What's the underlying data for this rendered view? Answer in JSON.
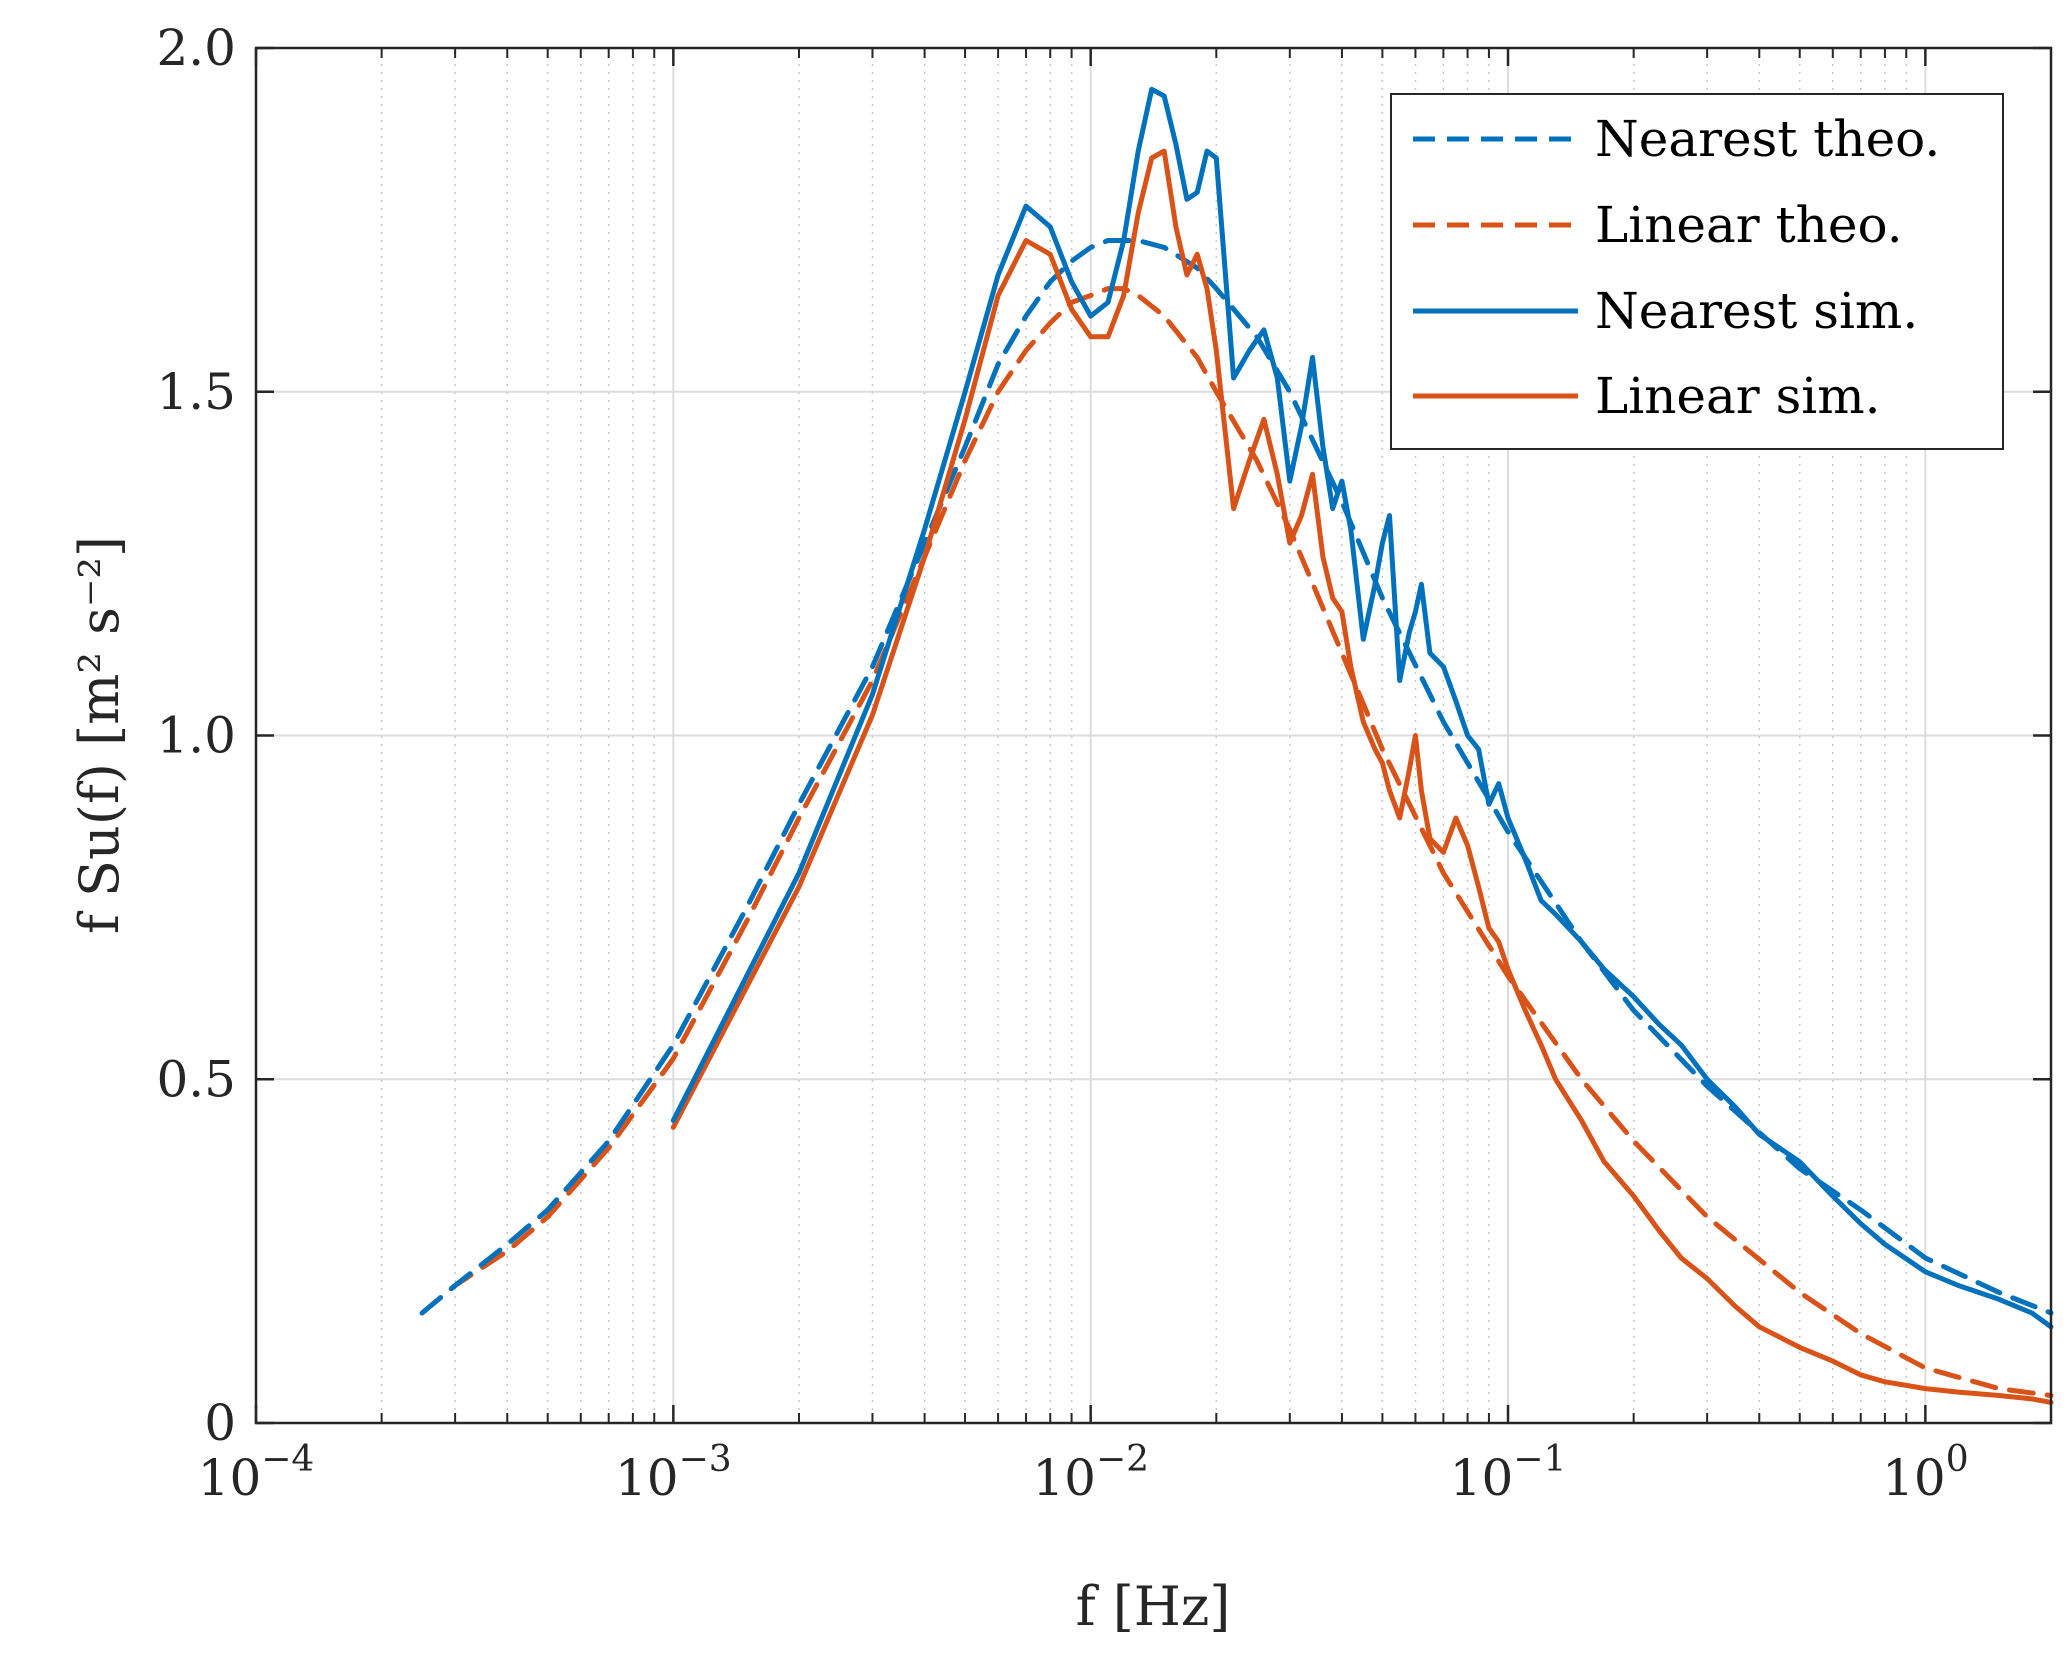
{
  "chart_data": {
    "type": "line",
    "title": "",
    "xlabel": "f  [Hz]",
    "ylabel": "f Su(f)  [m² s⁻²]",
    "xscale": "log",
    "xlim": [
      0.0001,
      2
    ],
    "ylim": [
      0,
      2
    ],
    "grid": true,
    "x_ticks": [
      0.0001,
      0.001,
      0.01,
      0.1,
      1
    ],
    "x_tick_labels": [
      {
        "base": "10",
        "exp": "−4"
      },
      {
        "base": "10",
        "exp": "−3"
      },
      {
        "base": "10",
        "exp": "−2"
      },
      {
        "base": "10",
        "exp": "−1"
      },
      {
        "base": "10",
        "exp": "0"
      }
    ],
    "y_ticks": [
      0,
      0.5,
      1.0,
      1.5,
      2.0
    ],
    "y_tick_labels": [
      "0",
      "0.5",
      "1.0",
      "1.5",
      "2.0"
    ],
    "legend_position": "top-right",
    "series": [
      {
        "name": "Nearest theo.",
        "color": "#0072BD",
        "style": "dashed",
        "x": [
          0.00025,
          0.0003,
          0.0004,
          0.0005,
          0.0007,
          0.001,
          0.0015,
          0.002,
          0.003,
          0.004,
          0.005,
          0.006,
          0.007,
          0.008,
          0.009,
          0.01,
          0.011,
          0.012,
          0.013,
          0.015,
          0.018,
          0.02,
          0.025,
          0.03,
          0.04,
          0.05,
          0.07,
          0.1,
          0.15,
          0.2,
          0.3,
          0.5,
          0.7,
          1.0,
          1.5,
          2.0
        ],
        "y": [
          0.16,
          0.2,
          0.26,
          0.31,
          0.41,
          0.55,
          0.75,
          0.9,
          1.1,
          1.28,
          1.42,
          1.54,
          1.61,
          1.66,
          1.69,
          1.71,
          1.72,
          1.72,
          1.72,
          1.71,
          1.68,
          1.65,
          1.58,
          1.5,
          1.34,
          1.2,
          1.02,
          0.86,
          0.7,
          0.6,
          0.49,
          0.37,
          0.31,
          0.24,
          0.19,
          0.16
        ]
      },
      {
        "name": "Linear theo.",
        "color": "#D95319",
        "style": "dashed",
        "x": [
          0.00025,
          0.0003,
          0.0004,
          0.0005,
          0.0007,
          0.001,
          0.0015,
          0.002,
          0.003,
          0.004,
          0.005,
          0.006,
          0.007,
          0.008,
          0.009,
          0.01,
          0.011,
          0.012,
          0.013,
          0.015,
          0.018,
          0.02,
          0.025,
          0.03,
          0.04,
          0.05,
          0.07,
          0.1,
          0.15,
          0.2,
          0.3,
          0.5,
          0.7,
          1.0,
          1.5,
          2.0
        ],
        "y": [
          0.16,
          0.2,
          0.25,
          0.3,
          0.4,
          0.53,
          0.73,
          0.88,
          1.08,
          1.26,
          1.4,
          1.5,
          1.56,
          1.6,
          1.63,
          1.64,
          1.65,
          1.65,
          1.64,
          1.61,
          1.55,
          1.5,
          1.4,
          1.3,
          1.12,
          0.98,
          0.8,
          0.65,
          0.5,
          0.41,
          0.3,
          0.19,
          0.13,
          0.08,
          0.05,
          0.04
        ]
      },
      {
        "name": "Nearest sim.",
        "color": "#0072BD",
        "style": "solid",
        "x": [
          0.001,
          0.002,
          0.003,
          0.004,
          0.005,
          0.006,
          0.007,
          0.008,
          0.009,
          0.01,
          0.011,
          0.012,
          0.013,
          0.014,
          0.015,
          0.016,
          0.017,
          0.018,
          0.019,
          0.02,
          0.022,
          0.024,
          0.026,
          0.028,
          0.03,
          0.032,
          0.034,
          0.036,
          0.038,
          0.04,
          0.042,
          0.045,
          0.048,
          0.05,
          0.052,
          0.055,
          0.058,
          0.06,
          0.062,
          0.065,
          0.07,
          0.075,
          0.08,
          0.085,
          0.09,
          0.095,
          0.1,
          0.11,
          0.12,
          0.13,
          0.15,
          0.17,
          0.2,
          0.23,
          0.26,
          0.3,
          0.35,
          0.4,
          0.5,
          0.6,
          0.7,
          0.8,
          1.0,
          1.2,
          1.5,
          1.8,
          2.0
        ],
        "y": [
          0.44,
          0.8,
          1.06,
          1.3,
          1.5,
          1.67,
          1.77,
          1.74,
          1.66,
          1.61,
          1.63,
          1.72,
          1.85,
          1.94,
          1.93,
          1.86,
          1.78,
          1.79,
          1.85,
          1.84,
          1.52,
          1.56,
          1.59,
          1.52,
          1.37,
          1.45,
          1.55,
          1.42,
          1.33,
          1.37,
          1.3,
          1.14,
          1.22,
          1.28,
          1.32,
          1.08,
          1.15,
          1.18,
          1.22,
          1.12,
          1.1,
          1.05,
          1.0,
          0.98,
          0.9,
          0.93,
          0.88,
          0.82,
          0.76,
          0.74,
          0.7,
          0.66,
          0.62,
          0.58,
          0.55,
          0.5,
          0.46,
          0.42,
          0.38,
          0.33,
          0.29,
          0.26,
          0.22,
          0.2,
          0.18,
          0.16,
          0.14
        ]
      },
      {
        "name": "Linear sim.",
        "color": "#D95319",
        "style": "solid",
        "x": [
          0.001,
          0.002,
          0.003,
          0.004,
          0.005,
          0.006,
          0.007,
          0.008,
          0.009,
          0.01,
          0.011,
          0.012,
          0.013,
          0.014,
          0.015,
          0.016,
          0.017,
          0.018,
          0.019,
          0.02,
          0.022,
          0.024,
          0.026,
          0.028,
          0.03,
          0.032,
          0.034,
          0.036,
          0.038,
          0.04,
          0.042,
          0.045,
          0.048,
          0.05,
          0.052,
          0.055,
          0.058,
          0.06,
          0.062,
          0.065,
          0.07,
          0.075,
          0.08,
          0.085,
          0.09,
          0.095,
          0.1,
          0.11,
          0.12,
          0.13,
          0.15,
          0.17,
          0.2,
          0.23,
          0.26,
          0.3,
          0.35,
          0.4,
          0.5,
          0.6,
          0.7,
          0.8,
          1.0,
          1.2,
          1.5,
          1.8,
          2.0
        ],
        "y": [
          0.43,
          0.78,
          1.03,
          1.26,
          1.46,
          1.64,
          1.72,
          1.7,
          1.62,
          1.58,
          1.58,
          1.64,
          1.76,
          1.84,
          1.85,
          1.74,
          1.67,
          1.7,
          1.65,
          1.56,
          1.33,
          1.4,
          1.46,
          1.38,
          1.28,
          1.32,
          1.38,
          1.26,
          1.2,
          1.18,
          1.1,
          1.02,
          0.98,
          0.96,
          0.92,
          0.88,
          0.95,
          1.0,
          0.92,
          0.85,
          0.83,
          0.88,
          0.84,
          0.78,
          0.72,
          0.7,
          0.66,
          0.6,
          0.55,
          0.5,
          0.44,
          0.38,
          0.33,
          0.28,
          0.24,
          0.21,
          0.17,
          0.14,
          0.11,
          0.09,
          0.07,
          0.06,
          0.05,
          0.045,
          0.04,
          0.035,
          0.03
        ]
      }
    ]
  }
}
